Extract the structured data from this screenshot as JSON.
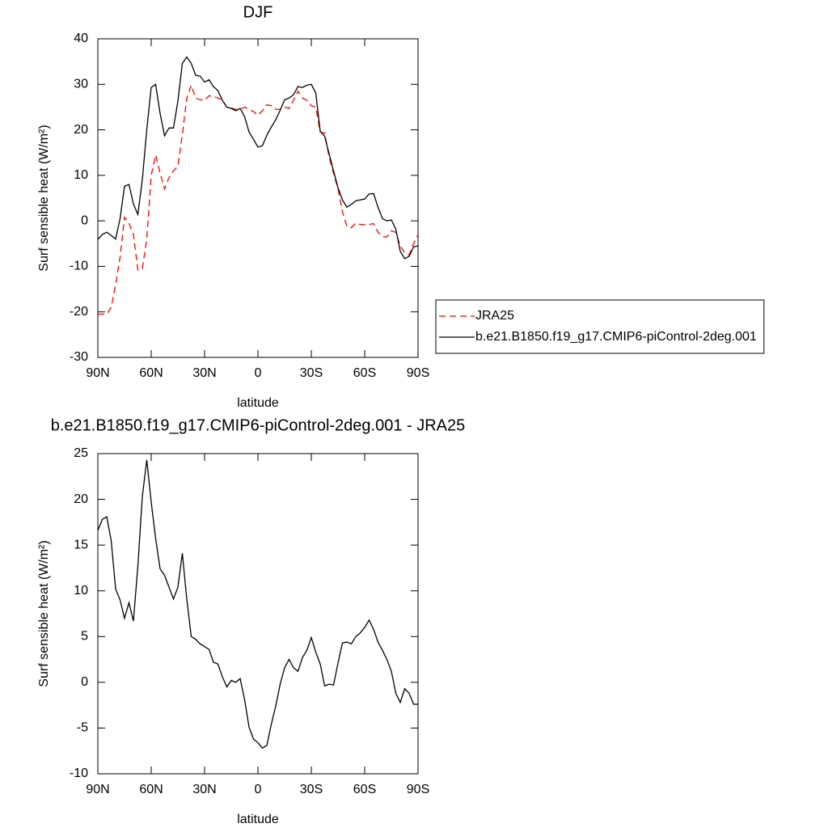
{
  "chart_data": [
    {
      "type": "line",
      "title": "DJF",
      "xlabel": "latitude",
      "ylabel": "Surf sensible heat (W/m²)",
      "x": [
        90,
        87.5,
        85,
        82.5,
        80,
        77.5,
        75,
        72.5,
        70,
        67.5,
        65,
        62.5,
        60,
        57.5,
        55,
        52.5,
        50,
        47.5,
        45,
        42.5,
        40,
        37.5,
        35,
        32.5,
        30,
        27.5,
        25,
        22.5,
        20,
        17.5,
        15,
        12.5,
        10,
        7.5,
        5,
        2.5,
        0,
        -2.5,
        -5,
        -7.5,
        -10,
        -12.5,
        -15,
        -17.5,
        -20,
        -22.5,
        -25,
        -27.5,
        -30,
        -32.5,
        -35,
        -37.5,
        -40,
        -42.5,
        -45,
        -47.5,
        -50,
        -52.5,
        -55,
        -57.5,
        -60,
        -62.5,
        -65,
        -67.5,
        -70,
        -72.5,
        -75,
        -77.5,
        -80,
        -82.5,
        -85,
        -87.5,
        -90
      ],
      "series": [
        {
          "name": "JRA25",
          "color": "#ff0000",
          "line_style": "dashed",
          "values": [
            -20.5,
            -20.5,
            -20.5,
            -19,
            -14,
            -8,
            0.8,
            -0.5,
            -3,
            -10.8,
            -10.5,
            -4,
            10,
            14.5,
            10.5,
            7,
            9.5,
            11,
            12,
            19,
            27,
            29.8,
            27,
            26.6,
            26.5,
            27.5,
            27.3,
            27,
            26.5,
            25,
            24.8,
            24.5,
            24.5,
            25,
            24.5,
            24,
            23.2,
            24.2,
            25.5,
            25.3,
            24.5,
            24.5,
            25,
            24.7,
            26.5,
            28.5,
            27,
            26.5,
            25.3,
            25,
            19.5,
            19.3,
            14,
            10.5,
            7,
            2,
            -1.2,
            -1.5,
            -0.5,
            -0.8,
            -0.8,
            -0.8,
            -0.6,
            -2.5,
            -3.5,
            -3.5,
            -2.2,
            -2.5,
            -5.5,
            -7,
            -7.5,
            -5,
            -3
          ]
        },
        {
          "name": "b.e21.B1850.f19_g17.CMIP6-piControl-2deg.001",
          "color": "#000000",
          "line_style": "solid",
          "values": [
            -4.1,
            -3,
            -2.5,
            -3.2,
            -4,
            0.5,
            7.6,
            8,
            3.7,
            1.4,
            9,
            20,
            29.3,
            30,
            23.6,
            18.7,
            20.4,
            20.4,
            26.3,
            34.6,
            36,
            34.6,
            32,
            31.8,
            30.5,
            31,
            29.5,
            28.6,
            26.5,
            25,
            24.7,
            24.2,
            24.7,
            22.9,
            19.5,
            17.9,
            16.2,
            16.5,
            18.8,
            20.6,
            22.2,
            24.3,
            26.6,
            27,
            27.7,
            29.5,
            29.3,
            29.8,
            30,
            28.1,
            19.7,
            18.6,
            14.7,
            11,
            7.3,
            4.6,
            3,
            3.6,
            4.4,
            4.6,
            4.8,
            5.9,
            6,
            3,
            0.5,
            0,
            0.2,
            -1.8,
            -6.7,
            -8.3,
            -7.8,
            -5.7,
            -5.5
          ]
        }
      ],
      "xlim": [
        90,
        -90
      ],
      "xticks": [
        {
          "value": 90,
          "label": "90N"
        },
        {
          "value": 60,
          "label": "60N"
        },
        {
          "value": 30,
          "label": "30N"
        },
        0,
        {
          "value": -30,
          "label": "30S"
        },
        {
          "value": -60,
          "label": "60S"
        },
        {
          "value": -90,
          "label": "90S"
        }
      ],
      "ylim": [
        -30,
        40
      ],
      "yticks": [
        -30,
        -20,
        -10,
        0,
        10,
        20,
        30,
        40
      ],
      "legend": "right"
    },
    {
      "type": "line",
      "title": "b.e21.B1850.f19_g17.CMIP6-piControl-2deg.001 - JRA25",
      "xlabel": "latitude",
      "ylabel": "Surf sensible heat (W/m²)",
      "x": [
        90,
        87.5,
        85,
        82.5,
        80,
        77.5,
        75,
        72.5,
        70,
        67.5,
        65,
        62.5,
        60,
        57.5,
        55,
        52.5,
        50,
        47.5,
        45,
        42.5,
        40,
        37.5,
        35,
        32.5,
        30,
        27.5,
        25,
        22.5,
        20,
        17.5,
        15,
        12.5,
        10,
        7.5,
        5,
        2.5,
        0,
        -2.5,
        -5,
        -7.5,
        -10,
        -12.5,
        -15,
        -17.5,
        -20,
        -22.5,
        -25,
        -27.5,
        -30,
        -32.5,
        -35,
        -37.5,
        -40,
        -42.5,
        -45,
        -47.5,
        -50,
        -52.5,
        -55,
        -57.5,
        -60,
        -62.5,
        -65,
        -67.5,
        -70,
        -72.5,
        -75,
        -77.5,
        -80,
        -82.5,
        -85,
        -87.5,
        -90
      ],
      "values": [
        16.6,
        17.8,
        18.1,
        15.5,
        10.2,
        9,
        7,
        8.7,
        6.7,
        12.7,
        20.3,
        24.3,
        19.7,
        15.7,
        12.4,
        11.7,
        10.4,
        9.1,
        10.4,
        14.1,
        9.1,
        5,
        4.7,
        4.2,
        3.9,
        3.6,
        2.2,
        2,
        0.6,
        -0.5,
        0.2,
        0,
        0.4,
        -1.9,
        -4.9,
        -6.2,
        -6.6,
        -7.2,
        -6.9,
        -4.6,
        -2.6,
        -0.2,
        1.6,
        2.5,
        1.6,
        1.2,
        2.7,
        3.5,
        4.9,
        3.3,
        2,
        -0.4,
        -0.2,
        -0.3,
        2.1,
        4.3,
        4.4,
        4.2,
        5,
        5.4,
        6,
        6.8,
        5.8,
        4.4,
        3.5,
        2.5,
        1.2,
        -1.2,
        -2.2,
        -0.7,
        -1.2,
        -2.4,
        -2.4
      ],
      "color": "#000000",
      "line_style": "solid",
      "xlim": [
        90,
        -90
      ],
      "xticks": [
        {
          "value": 90,
          "label": "90N"
        },
        {
          "value": 60,
          "label": "60N"
        },
        {
          "value": 30,
          "label": "30N"
        },
        0,
        {
          "value": -30,
          "label": "30S"
        },
        {
          "value": -60,
          "label": "60S"
        },
        {
          "value": -90,
          "label": "90S"
        }
      ],
      "ylim": [
        -10,
        25
      ],
      "yticks": [
        -10,
        -5,
        0,
        5,
        10,
        15,
        20,
        25
      ]
    }
  ]
}
